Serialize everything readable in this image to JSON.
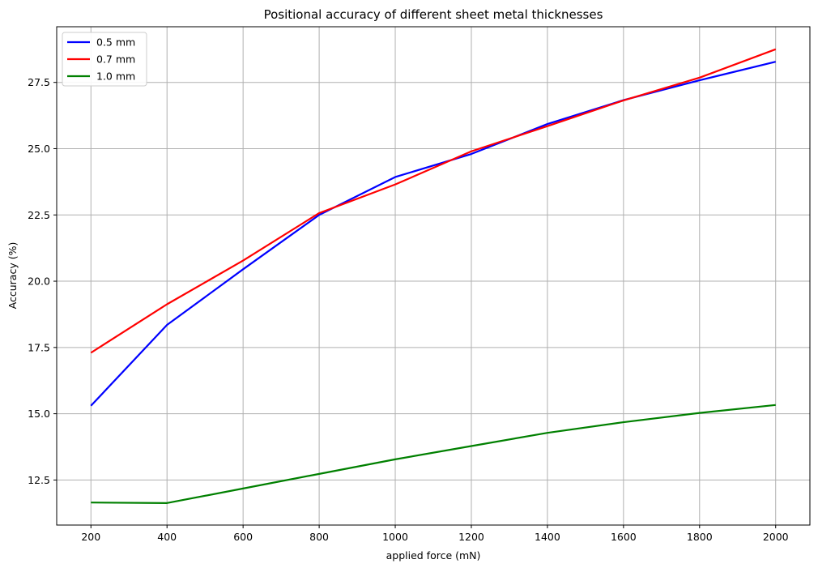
{
  "chart_data": {
    "type": "line",
    "title": "Positional accuracy of different sheet metal thicknesses",
    "xlabel": "applied force (mN)",
    "ylabel": "Accuracy (%)",
    "x": [
      200,
      400,
      600,
      800,
      1000,
      1200,
      1400,
      1600,
      1800,
      2000
    ],
    "xticks": [
      "200",
      "400",
      "600",
      "800",
      "1000",
      "1200",
      "1400",
      "1600",
      "1800",
      "2000"
    ],
    "yticks": [
      "12.5",
      "15.0",
      "17.5",
      "20.0",
      "22.5",
      "25.0",
      "27.5"
    ],
    "xlim": [
      110,
      2090
    ],
    "ylim": [
      10.8,
      29.6
    ],
    "grid": true,
    "legend_position": "top-left",
    "series": [
      {
        "name": "0.5 mm",
        "color": "#0000ff",
        "values": [
          15.3,
          18.35,
          20.45,
          22.5,
          23.93,
          24.8,
          25.93,
          26.83,
          27.58,
          28.28
        ]
      },
      {
        "name": "0.7 mm",
        "color": "#ff0000",
        "values": [
          17.3,
          19.13,
          20.78,
          22.57,
          23.65,
          24.9,
          25.85,
          26.82,
          27.68,
          28.75
        ]
      },
      {
        "name": "1.0 mm",
        "color": "#008000",
        "values": [
          11.65,
          11.63,
          12.18,
          12.73,
          13.28,
          13.78,
          14.28,
          14.68,
          15.03,
          15.33
        ]
      }
    ]
  }
}
